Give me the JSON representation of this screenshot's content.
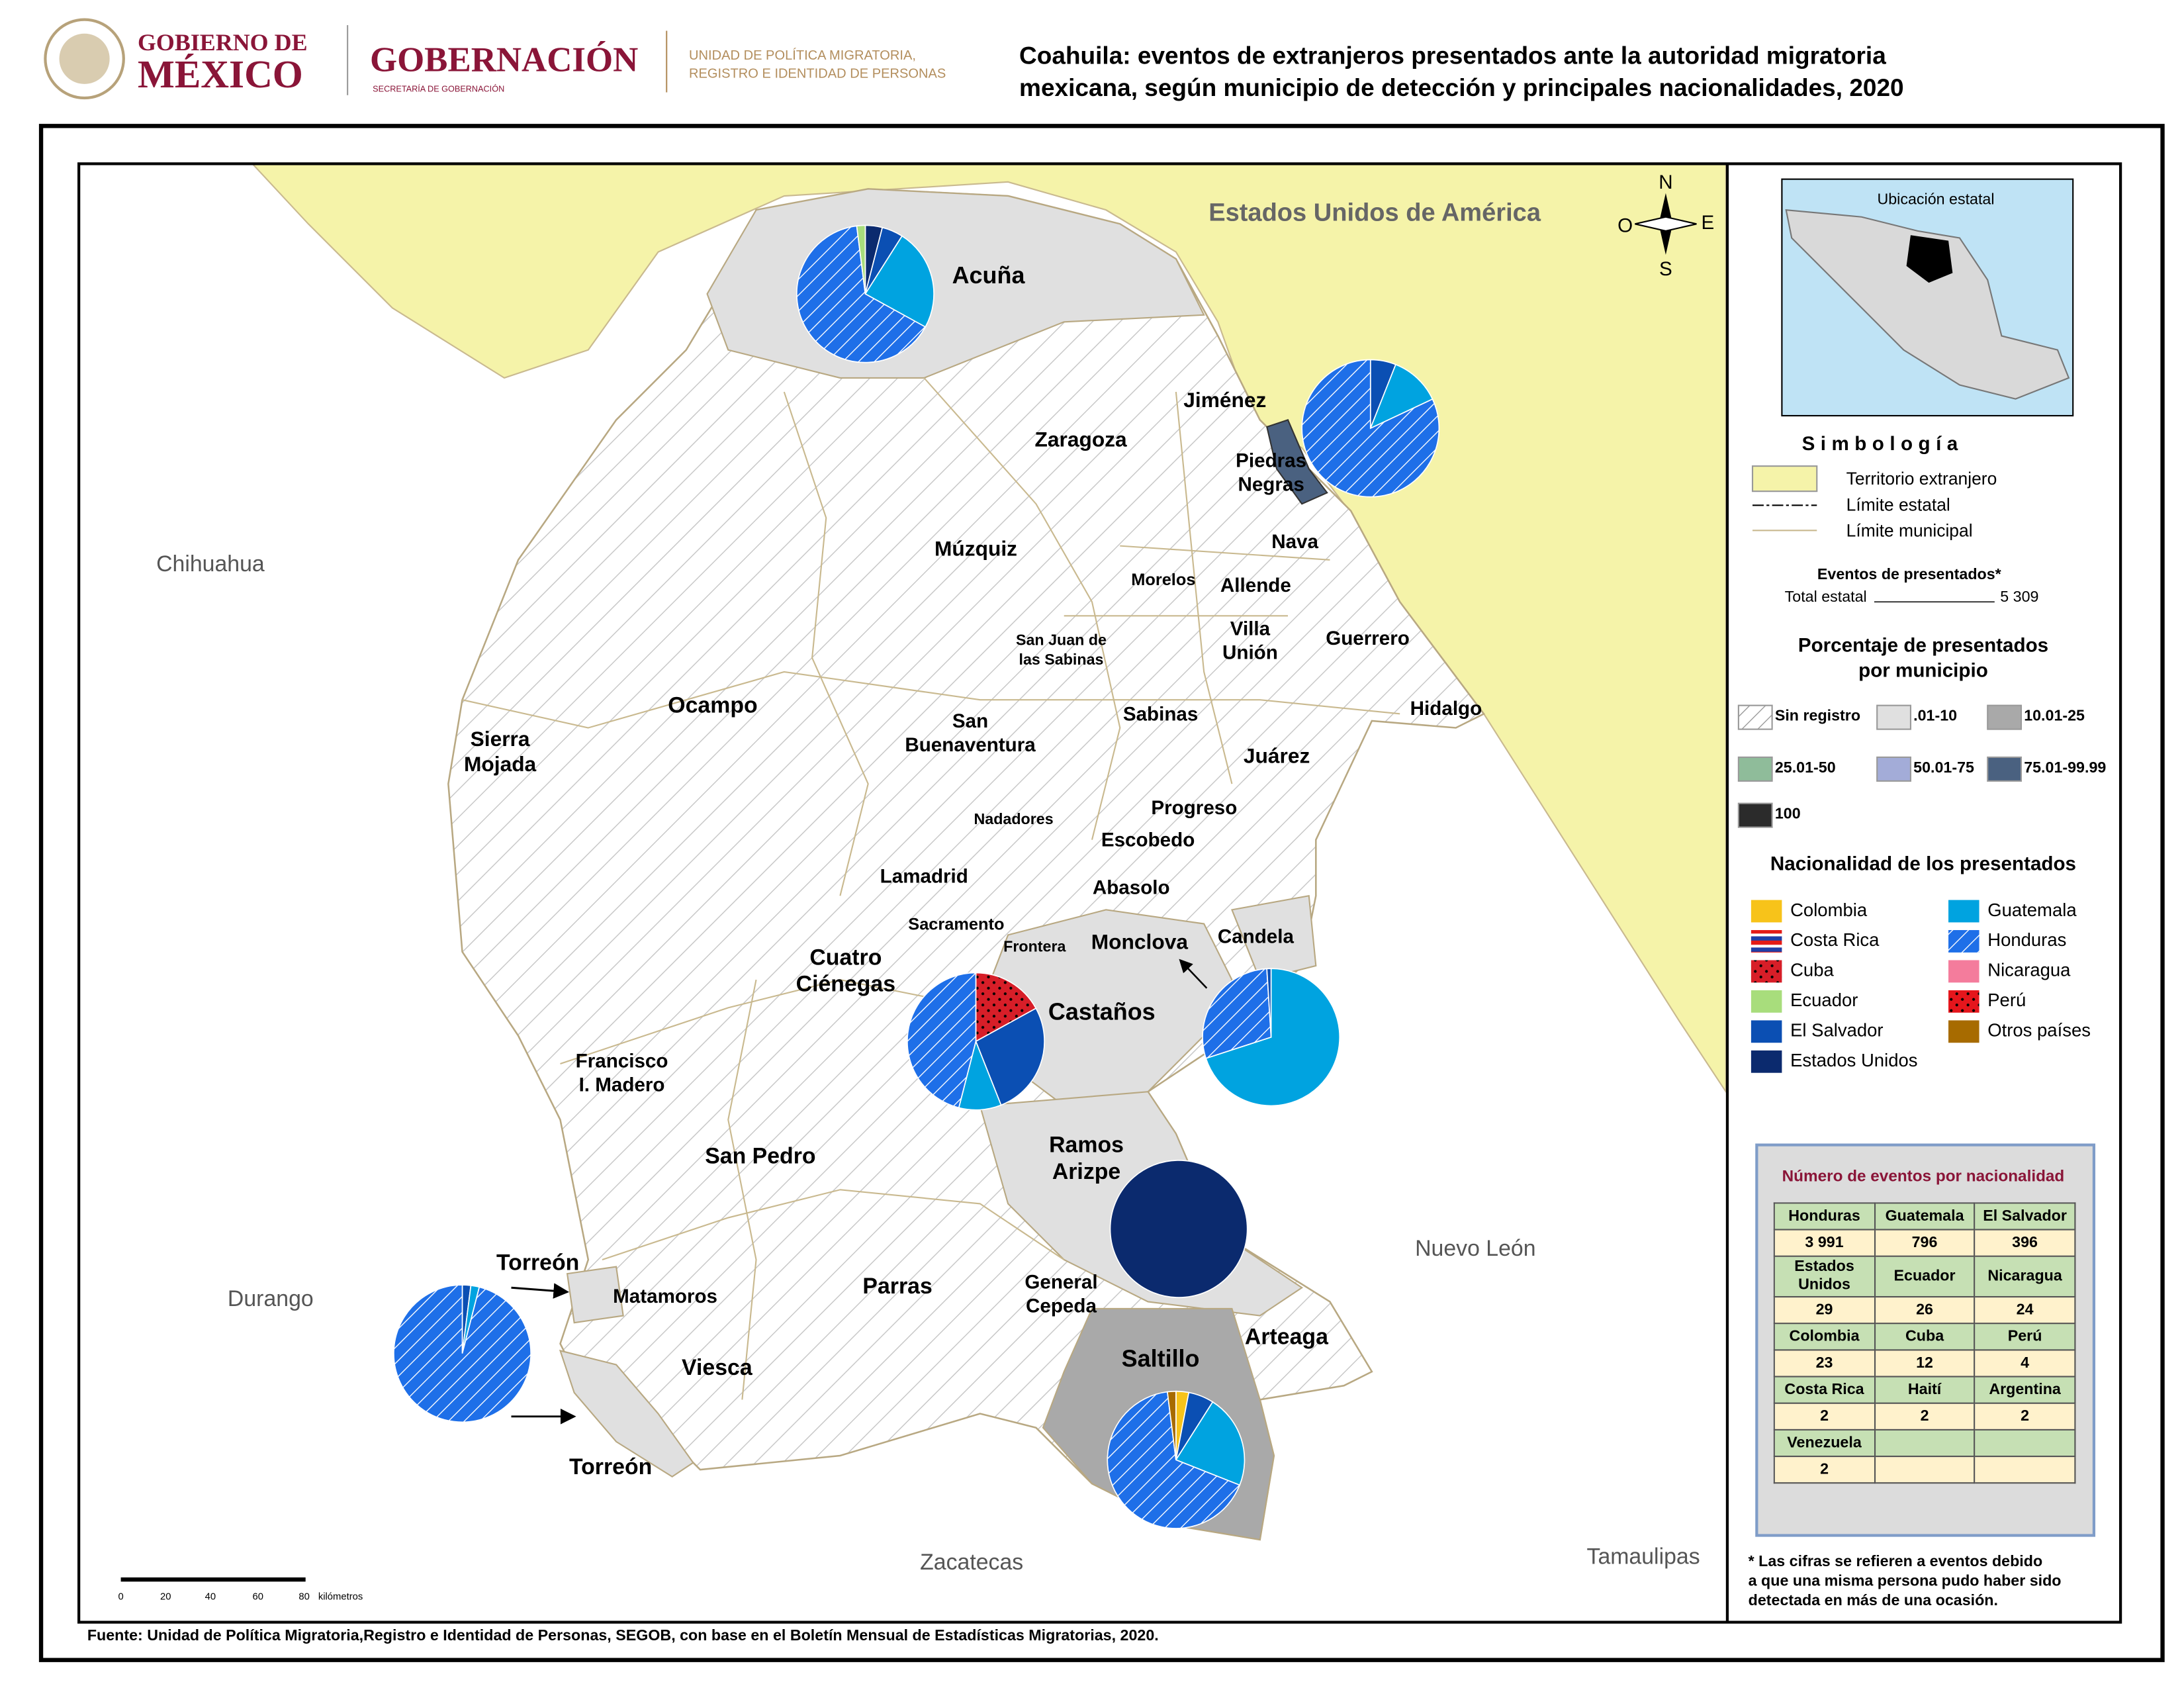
{
  "header": {
    "gov_line1": "GOBIERNO DE",
    "gov_line2": "MÉXICO",
    "ministry": "GOBERNACIÓN",
    "ministry_sub": "SECRETARÍA DE GOBERNACIÓN",
    "unit": [
      "UNIDAD DE POLÍTICA MIGRATORIA,",
      "REGISTRO E IDENTIDAD DE PERSONAS"
    ]
  },
  "title": [
    "Coahuila: eventos de extranjeros presentados ante la autoridad migratoria",
    "mexicana, según municipio de detección y principales nacionalidades, 2020"
  ],
  "map": {
    "foreign": "Estados Unidos de América",
    "neighbors": [
      "Chihuahua",
      "Durango",
      "Nuevo León",
      "Zacatecas",
      "Tamaulipas"
    ],
    "compass": [
      "N",
      "S",
      "O",
      "E"
    ],
    "scale": [
      "0",
      "20",
      "40",
      "60",
      "80",
      "kilómetros"
    ],
    "municipalities": [
      [
        "Acuña"
      ],
      [
        "Jiménez"
      ],
      [
        "Zaragoza"
      ],
      [
        "Piedras",
        "Negras"
      ],
      [
        "Múzquiz"
      ],
      [
        "Nava"
      ],
      [
        "Morelos"
      ],
      [
        "Allende"
      ],
      [
        "San Juan de",
        "las Sabinas"
      ],
      [
        "Villa",
        "Unión"
      ],
      [
        "Guerrero"
      ],
      [
        "Hidalgo"
      ],
      [
        "Ocampo"
      ],
      [
        "Sierra",
        "Mojada"
      ],
      [
        "San",
        "Buenaventura"
      ],
      [
        "Sabinas"
      ],
      [
        "Juárez"
      ],
      [
        "Progreso"
      ],
      [
        "Nadadores"
      ],
      [
        "Escobedo"
      ],
      [
        "Lamadrid"
      ],
      [
        "Abasolo"
      ],
      [
        "Sacramento"
      ],
      [
        "Monclova"
      ],
      [
        "Candela"
      ],
      [
        "Frontera"
      ],
      [
        "Cuatro",
        "Ciénegas"
      ],
      [
        "Castaños"
      ],
      [
        "Francisco",
        "I. Madero"
      ],
      [
        "San Pedro"
      ],
      [
        "Ramos",
        "Arizpe"
      ],
      [
        "Torreón"
      ],
      [
        "Matamoros"
      ],
      [
        "Parras"
      ],
      [
        "General",
        "Cepeda"
      ],
      [
        "Arteaga"
      ],
      [
        "Saltillo"
      ],
      [
        "Viesca"
      ],
      [
        "Torreón"
      ]
    ],
    "pies": [
      {
        "slices": [
          {
            "nationality": "Estados Unidos",
            "value": 4
          },
          {
            "nationality": "El Salvador",
            "value": 5
          },
          {
            "nationality": "Guatemala",
            "value": 24
          },
          {
            "nationality": "Honduras",
            "value": 65
          },
          {
            "nationality": "Ecuador",
            "value": 2
          }
        ]
      },
      {
        "slices": [
          {
            "nationality": "El Salvador",
            "value": 6
          },
          {
            "nationality": "Guatemala",
            "value": 12
          },
          {
            "nationality": "Honduras",
            "value": 82
          }
        ]
      },
      {
        "slices": [
          {
            "nationality": "Cuba",
            "value": 17
          },
          {
            "nationality": "El Salvador",
            "value": 27
          },
          {
            "nationality": "Guatemala",
            "value": 10
          },
          {
            "nationality": "Honduras",
            "value": 46
          }
        ]
      },
      {
        "slices": [
          {
            "nationality": "Guatemala",
            "value": 70
          },
          {
            "nationality": "Honduras",
            "value": 29
          },
          {
            "nationality": "El Salvador",
            "value": 1
          }
        ]
      },
      {
        "slices": [
          {
            "nationality": "Estados Unidos",
            "value": 100
          }
        ]
      },
      {
        "slices": [
          {
            "nationality": "El Salvador",
            "value": 2
          },
          {
            "nationality": "Guatemala",
            "value": 2
          },
          {
            "nationality": "Honduras",
            "value": 96
          }
        ]
      },
      {
        "slices": [
          {
            "nationality": "Colombia",
            "value": 3
          },
          {
            "nationality": "El Salvador",
            "value": 6
          },
          {
            "nationality": "Guatemala",
            "value": 22
          },
          {
            "nationality": "Honduras",
            "value": 67
          },
          {
            "nationality": "Otros países",
            "value": 2
          }
        ]
      }
    ]
  },
  "legend": {
    "locator_title": "Ubicación estatal",
    "title": "Simbología",
    "items": [
      "Territorio extranjero",
      "Límite estatal",
      "Límite municipal"
    ],
    "events_title": "Eventos de presentados*",
    "total_label": "Total estatal",
    "total_value": "5 309",
    "percent_title": [
      "Porcentaje de presentados",
      "por municipio"
    ],
    "percent_classes": [
      {
        "label": "Sin registro",
        "color": "#ffffff",
        "pattern": "hatch"
      },
      {
        "label": ".01-10",
        "color": "#e0e0e0"
      },
      {
        "label": "10.01-25",
        "color": "#a9a9a9"
      },
      {
        "label": "25.01-50",
        "color": "#8fbc9a"
      },
      {
        "label": "50.01-75",
        "color": "#a3acd8"
      },
      {
        "label": "75.01-99.99",
        "color": "#4a6180"
      },
      {
        "label": "100",
        "color": "#2b2b2b"
      }
    ],
    "nationality_title": "Nacionalidad de los presentados",
    "nationalities": [
      {
        "name": "Colombia",
        "color": "#f7c31a"
      },
      {
        "name": "Costa Rica",
        "color": "#e41b17",
        "pattern": "stripes"
      },
      {
        "name": "Cuba",
        "color": "#d71e28",
        "pattern": "dots"
      },
      {
        "name": "Ecuador",
        "color": "#a8dd7c"
      },
      {
        "name": "El Salvador",
        "color": "#0b4fb3"
      },
      {
        "name": "Estados Unidos",
        "color": "#0b2a6e"
      },
      {
        "name": "Guatemala",
        "color": "#00a3e0"
      },
      {
        "name": "Honduras",
        "color": "#1e6fe8",
        "pattern": "hatch"
      },
      {
        "name": "Nicaragua",
        "color": "#f47c9c"
      },
      {
        "name": "Perú",
        "color": "#e5161c",
        "pattern": "dots"
      },
      {
        "name": "Otros países",
        "color": "#a76b00"
      }
    ]
  },
  "table": {
    "title": "Número de eventos por nacionalidad",
    "rows": [
      [
        "Honduras",
        "Guatemala",
        "El Salvador"
      ],
      [
        "3 991",
        "796",
        "396"
      ],
      [
        "Estados Unidos",
        "Ecuador",
        "Nicaragua"
      ],
      [
        "29",
        "26",
        "24"
      ],
      [
        "Colombia",
        "Cuba",
        "Perú"
      ],
      [
        "23",
        "12",
        "4"
      ],
      [
        "Costa Rica",
        "Haití",
        "Argentina"
      ],
      [
        "2",
        "2",
        "2"
      ],
      [
        "Venezuela"
      ],
      [
        "2"
      ]
    ]
  },
  "footnote": [
    "* Las cifras se refieren a eventos debido",
    "a que una misma persona pudo haber sido",
    "detectada en más de una ocasión."
  ],
  "source": "Fuente: Unidad de Política Migratoria,Registro e Identidad de Personas, SEGOB, con base en el Boletín Mensual de Estadísticas Migratorias, 2020."
}
